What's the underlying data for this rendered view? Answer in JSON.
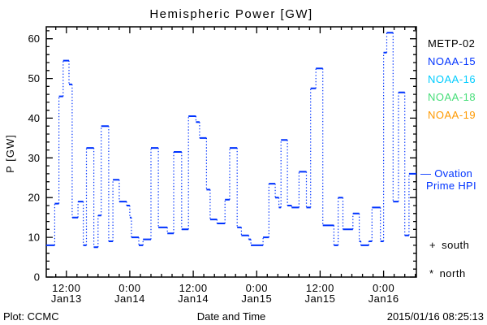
{
  "title": "Hemispheric Power [GW]",
  "legend": {
    "items": [
      {
        "label": "METP-02",
        "color": "#000000"
      },
      {
        "label": "NOAA-15",
        "color": "#0033ff"
      },
      {
        "label": "NOAA-16",
        "color": "#00ccff"
      },
      {
        "label": "NOAA-18",
        "color": "#44dd77"
      },
      {
        "label": "NOAA-19",
        "color": "#ff9900"
      }
    ],
    "annotation": {
      "swatch": "—",
      "line1": "Ovation",
      "line2": "Prime HPI",
      "color": "#0033ff"
    },
    "markers": [
      {
        "symbol": "+",
        "label": "south"
      },
      {
        "symbol": "*",
        "label": "north"
      }
    ]
  },
  "footer": {
    "left": "Plot: CCMC",
    "center": "Date and Time",
    "right": "2015/01/16 08:25:13"
  },
  "chart_data": {
    "type": "line",
    "subtype": "steps-post, solid horizontal segments joined by dotted vertical connectors",
    "title": "Hemispheric Power [GW]",
    "xlabel": "Date and Time",
    "ylabel": "P [GW]",
    "ylim": [
      0,
      63
    ],
    "y_major_ticks": [
      0,
      10,
      20,
      30,
      40,
      50,
      60
    ],
    "y_minor_step": 2,
    "t_unit": "hours since 2015-01-13 00:00 UT",
    "xlim": [
      8.2,
      78.2
    ],
    "x_major_ticks": [
      {
        "t": 12,
        "line1": "12:00",
        "line2": "Jan13"
      },
      {
        "t": 24,
        "line1": "0:00",
        "line2": "Jan14"
      },
      {
        "t": 36,
        "line1": "12:00",
        "line2": "Jan14"
      },
      {
        "t": 48,
        "line1": "0:00",
        "line2": "Jan15"
      },
      {
        "t": 60,
        "line1": "12:00",
        "line2": "Jan15"
      },
      {
        "t": 72,
        "line1": "0:00",
        "line2": "Jan16"
      }
    ],
    "x_minor_step_hours": 2,
    "grid": false,
    "legend_position": "right, outside plot",
    "series": [
      {
        "name": "NOAA-15 Ovation Prime HPI",
        "color": "#0033ff",
        "points_t_v": [
          [
            8.2,
            8
          ],
          [
            9.8,
            18.5
          ],
          [
            10.6,
            45.5
          ],
          [
            11.4,
            54.5
          ],
          [
            12.5,
            48.5
          ],
          [
            13.1,
            15
          ],
          [
            14.2,
            19
          ],
          [
            15.2,
            8
          ],
          [
            15.8,
            32.5
          ],
          [
            17.2,
            7.5
          ],
          [
            18.0,
            15.5
          ],
          [
            18.6,
            38
          ],
          [
            20.0,
            9
          ],
          [
            20.8,
            24.5
          ],
          [
            22.0,
            19
          ],
          [
            23.4,
            18
          ],
          [
            24.0,
            15
          ],
          [
            24.3,
            10
          ],
          [
            25.7,
            8
          ],
          [
            26.5,
            9.5
          ],
          [
            28.0,
            32.5
          ],
          [
            29.4,
            12.5
          ],
          [
            31.1,
            11
          ],
          [
            32.3,
            31.5
          ],
          [
            33.8,
            12
          ],
          [
            35.1,
            40.5
          ],
          [
            36.5,
            39
          ],
          [
            37.2,
            35
          ],
          [
            38.5,
            22
          ],
          [
            39.2,
            14.5
          ],
          [
            40.5,
            13.5
          ],
          [
            42.0,
            19.5
          ],
          [
            42.9,
            32.5
          ],
          [
            44.3,
            12.5
          ],
          [
            45.1,
            10.5
          ],
          [
            46.5,
            9.5
          ],
          [
            46.9,
            8
          ],
          [
            49.2,
            10
          ],
          [
            50.3,
            23.5
          ],
          [
            51.5,
            20
          ],
          [
            52.2,
            17.5
          ],
          [
            52.6,
            34.5
          ],
          [
            53.8,
            18
          ],
          [
            54.6,
            17.5
          ],
          [
            56.0,
            26.5
          ],
          [
            57.4,
            17.5
          ],
          [
            58.2,
            47.5
          ],
          [
            59.2,
            52.5
          ],
          [
            60.5,
            13
          ],
          [
            62.6,
            8
          ],
          [
            63.4,
            20
          ],
          [
            64.3,
            12
          ],
          [
            66.2,
            16
          ],
          [
            67.4,
            9
          ],
          [
            67.7,
            8
          ],
          [
            69.2,
            9
          ],
          [
            69.8,
            17.5
          ],
          [
            71.4,
            9
          ],
          [
            72.0,
            56.5
          ],
          [
            72.6,
            61.5
          ],
          [
            73.8,
            19
          ],
          [
            74.8,
            46.5
          ],
          [
            76.0,
            10.5
          ],
          [
            76.8,
            26
          ]
        ]
      }
    ]
  }
}
